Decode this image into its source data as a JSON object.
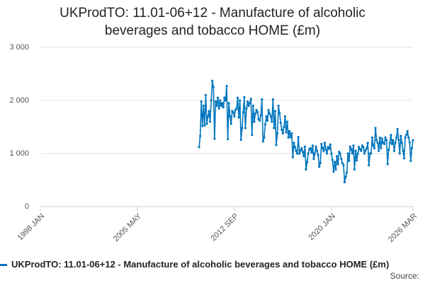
{
  "chart_data": {
    "type": "line",
    "title": "UKProdTO: 11.01-06+12 - Manufacture of alcoholic beverages and tobacco HOME (£m)",
    "source": "Source:",
    "xlim": [
      "1998-01",
      "2026-03"
    ],
    "xticks": [
      {
        "value": "1998-01",
        "label": "1998 JAN"
      },
      {
        "value": "2005-05",
        "label": "2005 MAY"
      },
      {
        "value": "2012-09",
        "label": "2012 SEP"
      },
      {
        "value": "2020-01",
        "label": "2020 JAN"
      },
      {
        "value": "2026-03",
        "label": "2026 MAR"
      }
    ],
    "ylim": [
      0,
      3000
    ],
    "yticks": [
      0,
      {
        "value": 1000,
        "label": "1 000"
      },
      {
        "value": 2000,
        "label": "2 000"
      },
      {
        "value": 3000,
        "label": "3 000"
      }
    ],
    "grid": true,
    "x": [
      "2010-01",
      "2010-02",
      "2010-03",
      "2010-04",
      "2010-05",
      "2010-06",
      "2010-07",
      "2010-08",
      "2010-09",
      "2010-10",
      "2010-11",
      "2010-12",
      "2011-01",
      "2011-02",
      "2011-03",
      "2011-04",
      "2011-05",
      "2011-06",
      "2011-07",
      "2011-08",
      "2011-09",
      "2011-10",
      "2011-11",
      "2011-12",
      "2012-01",
      "2012-02",
      "2012-03",
      "2012-04",
      "2012-05",
      "2012-06",
      "2012-07",
      "2012-08",
      "2012-09",
      "2012-10",
      "2012-11",
      "2012-12",
      "2013-01",
      "2013-02",
      "2013-03",
      "2013-04",
      "2013-05",
      "2013-06",
      "2013-07",
      "2013-08",
      "2013-09",
      "2013-10",
      "2013-11",
      "2013-12",
      "2014-01",
      "2014-02",
      "2014-03",
      "2014-04",
      "2014-05",
      "2014-06",
      "2014-07",
      "2014-08",
      "2014-09",
      "2014-10",
      "2014-11",
      "2014-12",
      "2015-01",
      "2015-02",
      "2015-03",
      "2015-04",
      "2015-05",
      "2015-06",
      "2015-07",
      "2015-08",
      "2015-09",
      "2015-10",
      "2015-11",
      "2015-12",
      "2016-01",
      "2016-02",
      "2016-03",
      "2016-04",
      "2016-05",
      "2016-06",
      "2016-07",
      "2016-08",
      "2016-09",
      "2016-10",
      "2016-11",
      "2016-12",
      "2017-01",
      "2017-02",
      "2017-03",
      "2017-04",
      "2017-05",
      "2017-06",
      "2017-07",
      "2017-08",
      "2017-09",
      "2017-10",
      "2017-11",
      "2017-12",
      "2018-01",
      "2018-02",
      "2018-03",
      "2018-04",
      "2018-05",
      "2018-06",
      "2018-07",
      "2018-08",
      "2018-09",
      "2018-10",
      "2018-11",
      "2018-12",
      "2019-01",
      "2019-02",
      "2019-03",
      "2019-04",
      "2019-05",
      "2019-06",
      "2019-07",
      "2019-08",
      "2019-09",
      "2019-10",
      "2019-11",
      "2019-12",
      "2020-01",
      "2020-02",
      "2020-03",
      "2020-04",
      "2020-05",
      "2020-06",
      "2020-07",
      "2020-08",
      "2020-09",
      "2020-10",
      "2020-11",
      "2020-12",
      "2021-01",
      "2021-02",
      "2021-03",
      "2021-04",
      "2021-05",
      "2021-06",
      "2021-07",
      "2021-08",
      "2021-09",
      "2021-10",
      "2021-11",
      "2021-12",
      "2022-01",
      "2022-02",
      "2022-03",
      "2022-04",
      "2022-05",
      "2022-06",
      "2022-07",
      "2022-08",
      "2022-09",
      "2022-10",
      "2022-11",
      "2022-12",
      "2023-01",
      "2023-02",
      "2023-03",
      "2023-04",
      "2023-05",
      "2023-06",
      "2023-07",
      "2023-08",
      "2023-09",
      "2023-10",
      "2023-11",
      "2023-12",
      "2024-01",
      "2024-02",
      "2024-03",
      "2024-04",
      "2024-05",
      "2024-06",
      "2024-07",
      "2024-08",
      "2024-09",
      "2024-10",
      "2024-11",
      "2024-12",
      "2025-01",
      "2025-02",
      "2025-03",
      "2025-04",
      "2025-05",
      "2025-06",
      "2025-07",
      "2025-08",
      "2025-09",
      "2025-10",
      "2025-11",
      "2025-12",
      "2026-01",
      "2026-02",
      "2026-03"
    ],
    "series": [
      {
        "name": "UKProdTO: 11.01-06+12 - Manufacture of alcoholic beverages and tobacco HOME (£m)",
        "color": "#0076bd",
        "values": [
          1120,
          1330,
          1980,
          1520,
          1900,
          1530,
          2100,
          1560,
          1700,
          1800,
          1600,
          2000,
          2370,
          2250,
          1280,
          1980,
          1900,
          2050,
          1850,
          2000,
          1900,
          1950,
          1870,
          2050,
          2000,
          2270,
          1270,
          1950,
          1700,
          1560,
          1800,
          1780,
          1700,
          1820,
          1850,
          2050,
          1680,
          2000,
          1260,
          1480,
          1780,
          2060,
          1480,
          1850,
          1980,
          1900,
          1950,
          2030,
          1350,
          1900,
          1600,
          1750,
          1820,
          1780,
          1650,
          1620,
          1720,
          2020,
          1230,
          1300,
          1550,
          1700,
          1620,
          1820,
          1750,
          1700,
          1600,
          2020,
          1480,
          1800,
          1160,
          1380,
          1900,
          1760,
          1580,
          1450,
          1380,
          1500,
          1700,
          1400,
          1600,
          1300,
          1420,
          1310,
          1380,
          930,
          1200,
          1120,
          1050,
          1000,
          1310,
          1000,
          1060,
          1100,
          1030,
          950,
          1130,
          700,
          840,
          1000,
          1080,
          1100,
          1020,
          1150,
          900,
          1000,
          1130,
          1050,
          970,
          750,
          820,
          1180,
          1100,
          1050,
          1200,
          1080,
          1000,
          1120,
          1090,
          1170,
          1000,
          880,
          660,
          840,
          700,
          950,
          800,
          1030,
          1000,
          900,
          820,
          780,
          460,
          560,
          640,
          1000,
          860,
          1130,
          1080,
          1000,
          1150,
          700,
          1050,
          870,
          1000,
          1120,
          1080,
          1050,
          1150,
          1120,
          1000,
          1060,
          1100,
          1200,
          780,
          1000,
          1000,
          1300,
          1150,
          1100,
          1480,
          1250,
          1200,
          1050,
          1300,
          1100,
          1280,
          1200,
          1180,
          1300,
          1250,
          800,
          1070,
          1200,
          1350,
          1180,
          1250,
          1050,
          1200,
          1300,
          1460,
          1260,
          1000,
          1330,
          1200,
          1050,
          910,
          1300,
          1350,
          1420,
          1300,
          1210,
          860,
          1100,
          1250
        ]
      }
    ]
  }
}
